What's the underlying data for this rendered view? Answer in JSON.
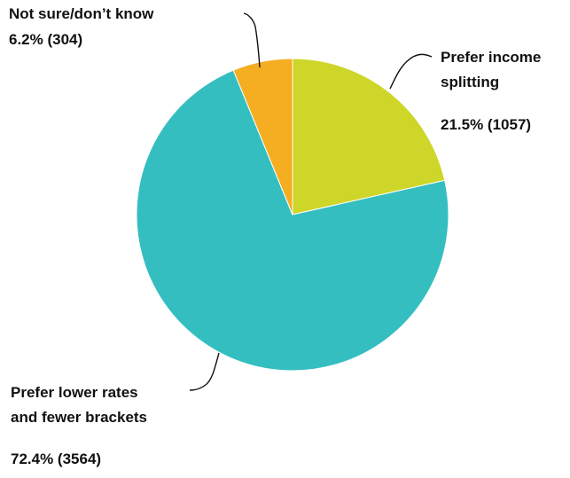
{
  "chart_data": {
    "type": "pie",
    "title": "",
    "start_angle_deg": 0,
    "direction": "clockwise",
    "slices": [
      {
        "name": "Prefer income splitting",
        "label_lines": [
          "Prefer income",
          "splitting"
        ],
        "value_text": "21.5% (1057)",
        "percent": 21.5,
        "count": 1057,
        "color": "#cdd629"
      },
      {
        "name": "Prefer lower rates and fewer brackets",
        "label_lines": [
          "Prefer lower rates",
          "and fewer brackets"
        ],
        "value_text": "72.4% (3564)",
        "percent": 72.4,
        "count": 3564,
        "color": "#34bec0"
      },
      {
        "name": "Not sure/don’t know",
        "label_lines": [
          "Not sure/don’t know"
        ],
        "value_text": "6.2% (304)",
        "percent": 6.2,
        "count": 304,
        "color": "#f5ad22"
      }
    ]
  }
}
